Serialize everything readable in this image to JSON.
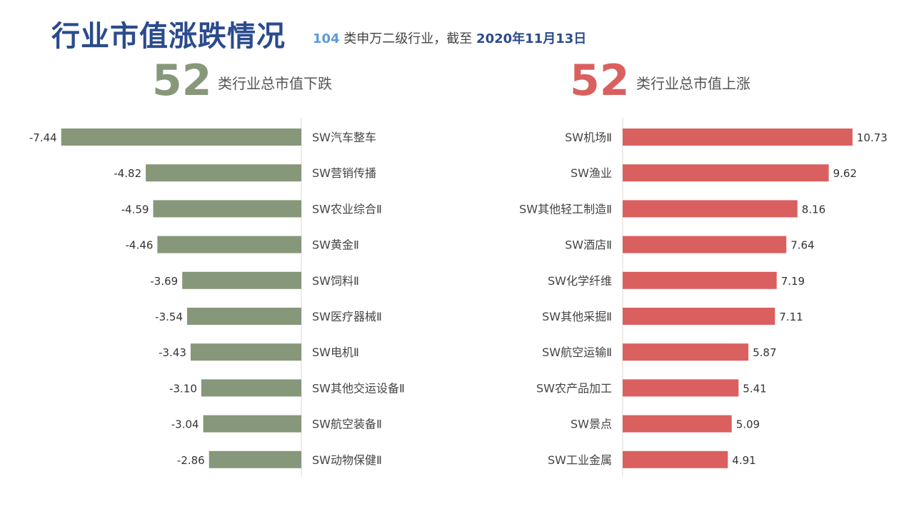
{
  "header": {
    "title": "行业市值涨跌情况",
    "subtitle_count": "104",
    "subtitle_mid": "类申万二级行业，截至",
    "subtitle_date": "2020年11月13日"
  },
  "summary": {
    "down_count": "52",
    "down_label": "类行业总市值下跌",
    "up_count": "52",
    "up_label": "类行业总市值上涨"
  },
  "colors": {
    "down": "#87977a",
    "up": "#d9605f",
    "title": "#2b4b8c"
  },
  "chart_data": [
    {
      "type": "bar",
      "orientation": "horizontal",
      "categories": [
        "SW汽车整车",
        "SW营销传播",
        "SW农业综合Ⅱ",
        "SW黄金Ⅱ",
        "SW饲料Ⅱ",
        "SW医疗器械Ⅱ",
        "SW电机Ⅱ",
        "SW其他交运设备Ⅱ",
        "SW航空装备Ⅱ",
        "SW动物保健Ⅱ"
      ],
      "values": [
        -7.44,
        -4.82,
        -4.59,
        -4.46,
        -3.69,
        -3.54,
        -3.43,
        -3.1,
        -3.04,
        -2.86
      ],
      "labels": [
        "-7.44",
        "-4.82",
        "-4.59",
        "-4.46",
        "-3.69",
        "-3.54",
        "-3.43",
        "-3.10",
        "-3.04",
        "-2.86"
      ],
      "color": "#87977a"
    },
    {
      "type": "bar",
      "orientation": "horizontal",
      "categories": [
        "SW机场Ⅱ",
        "SW渔业",
        "SW其他轻工制造Ⅱ",
        "SW酒店Ⅱ",
        "SW化学纤维",
        "SW其他采掘Ⅱ",
        "SW航空运输Ⅱ",
        "SW农产品加工",
        "SW景点",
        "SW工业金属"
      ],
      "values": [
        10.73,
        9.62,
        8.16,
        7.64,
        7.19,
        7.11,
        5.87,
        5.41,
        5.09,
        4.91
      ],
      "labels": [
        "10.73",
        "9.62",
        "8.16",
        "7.64",
        "7.19",
        "7.11",
        "5.87",
        "5.41",
        "5.09",
        "4.91"
      ],
      "color": "#d9605f"
    }
  ]
}
